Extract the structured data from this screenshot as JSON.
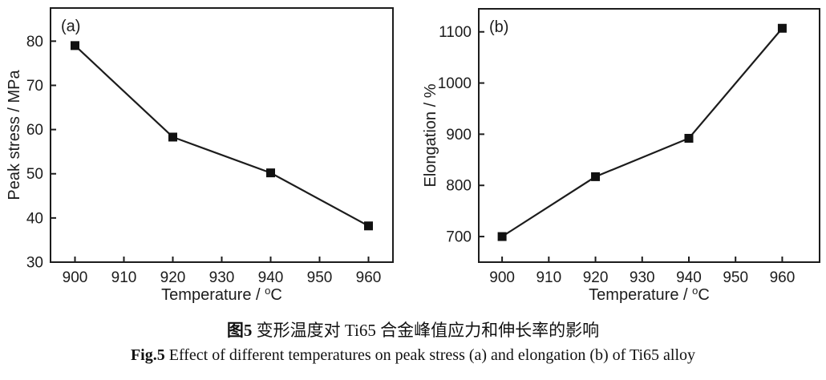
{
  "caption": {
    "line1_bold": "图5",
    "line1_rest": " 变形温度对 Ti65 合金峰值应力和伸长率的影响",
    "line2_bold": "Fig.5",
    "line2_rest": " Effect of different temperatures on peak stress (a) and elongation (b) of Ti65 alloy"
  },
  "colors": {
    "line": "#1c1c1c",
    "marker": "#111111",
    "axis": "#1c1c1c"
  },
  "chart_data": [
    {
      "type": "line",
      "panel_label": "(a)",
      "xlabel": "Temperature / °C",
      "ylabel": "Peak stress / MPa",
      "x": [
        900,
        920,
        940,
        960
      ],
      "values": [
        79,
        58.3,
        50.2,
        38.2
      ],
      "xlim": [
        895,
        965
      ],
      "ylim": [
        30,
        87.5
      ],
      "xticks": [
        900,
        910,
        920,
        930,
        940,
        950,
        960
      ],
      "yticks": [
        30,
        40,
        50,
        60,
        70,
        80
      ],
      "marker": "square",
      "legend": "none",
      "grid": false
    },
    {
      "type": "line",
      "panel_label": "(b)",
      "xlabel": "Temperature / °C",
      "ylabel": "Elongation / %",
      "x": [
        900,
        920,
        940,
        960
      ],
      "values": [
        700,
        817,
        892,
        1107
      ],
      "xlim": [
        895,
        968
      ],
      "ylim": [
        650,
        1145
      ],
      "xticks": [
        900,
        910,
        920,
        930,
        940,
        950,
        960
      ],
      "yticks": [
        700,
        800,
        900,
        1000,
        1100
      ],
      "marker": "square",
      "legend": "none",
      "grid": false
    }
  ]
}
